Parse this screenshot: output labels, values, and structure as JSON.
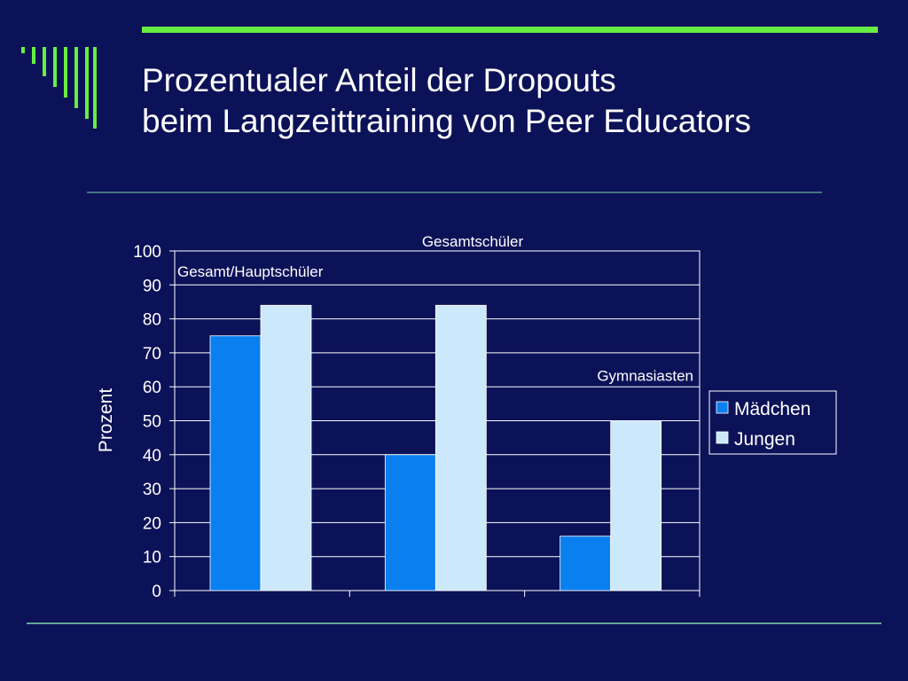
{
  "slide": {
    "title_line1": "Prozentualer Anteil der Dropouts",
    "title_line2": "beim Langzeittraining von Peer Educators",
    "colors": {
      "background": "#0c1258",
      "accent_green": "#66ee44",
      "divider": "#7fd6b0",
      "plot_border": "#ffffff"
    }
  },
  "chart_data": {
    "type": "bar",
    "title": "",
    "xlabel": "",
    "ylabel": "Prozent",
    "ylim": [
      0,
      100
    ],
    "yticks": [
      0,
      10,
      20,
      30,
      40,
      50,
      60,
      70,
      80,
      90,
      100
    ],
    "categories": [
      "Gesamt/Hauptschüler",
      "Gesamtschüler",
      "Gymnasiasten"
    ],
    "series": [
      {
        "name": "Mädchen",
        "values": [
          75,
          40,
          16
        ],
        "color": "#0a7ff0"
      },
      {
        "name": "Jungen",
        "values": [
          84,
          84,
          50
        ],
        "color": "#cce8fb"
      }
    ],
    "grid": true,
    "legend": "right"
  }
}
